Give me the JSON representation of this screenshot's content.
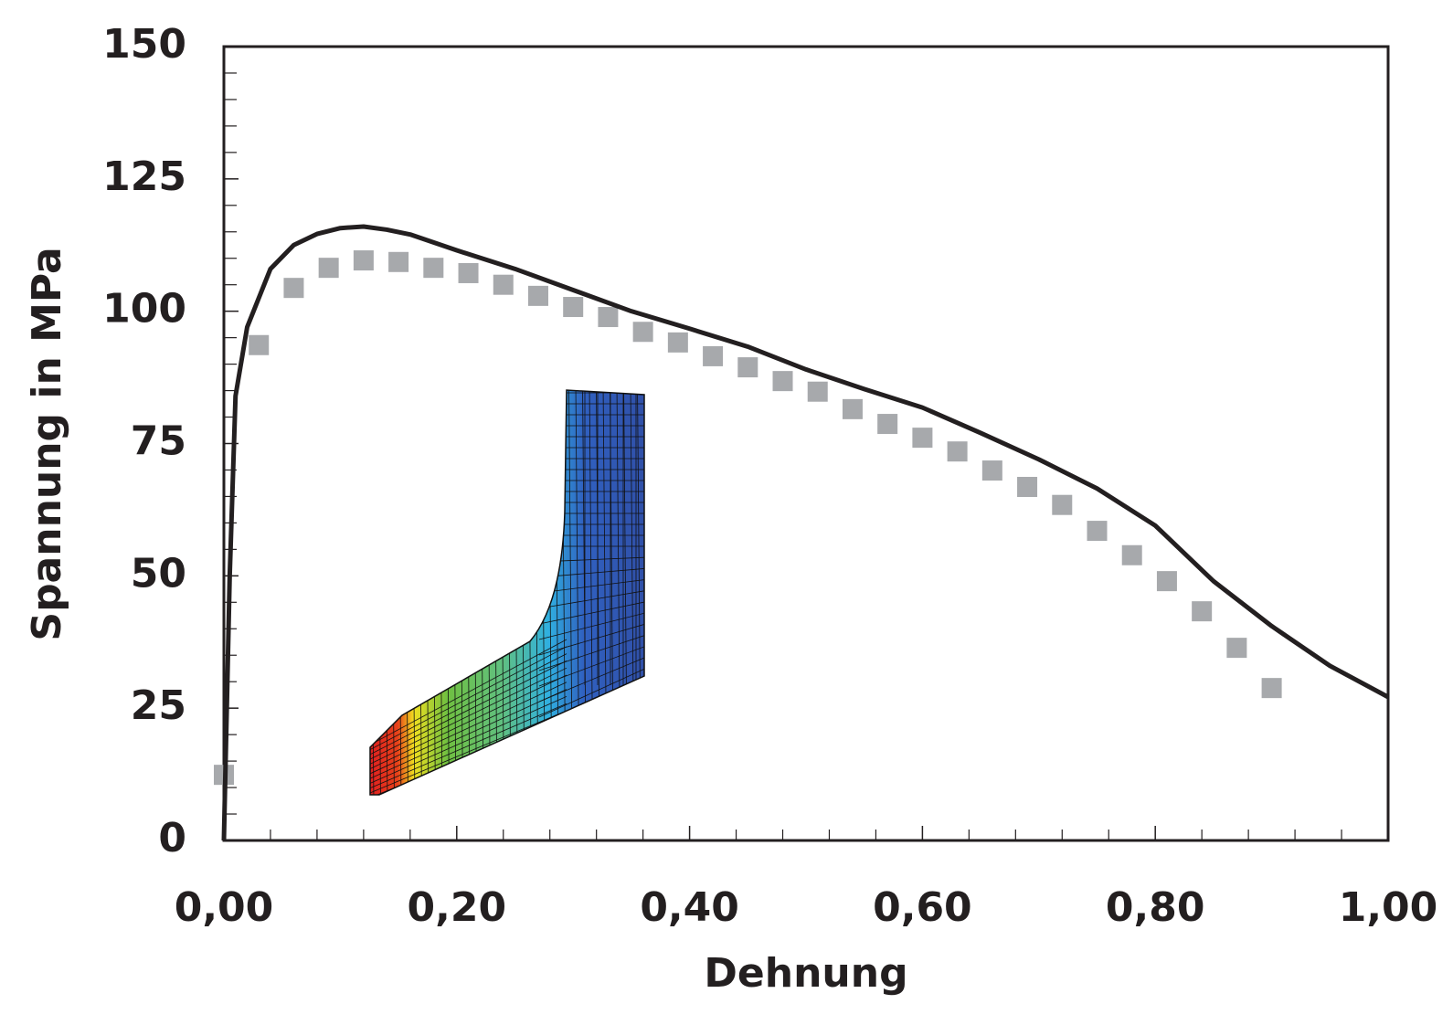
{
  "chart_data": {
    "type": "line",
    "xlabel": "Dehnung",
    "ylabel": "Spannung in MPa",
    "xlim": [
      0,
      1
    ],
    "ylim": [
      0,
      150
    ],
    "xticks": [
      {
        "value": 0,
        "label": "0,00"
      },
      {
        "value": 0.2,
        "label": "0,20"
      },
      {
        "value": 0.4,
        "label": "0,40"
      },
      {
        "value": 0.6,
        "label": "0,60"
      },
      {
        "value": 0.8,
        "label": "0,80"
      },
      {
        "value": 1,
        "label": "1,00"
      }
    ],
    "xminorticks": [
      0.04,
      0.08,
      0.12,
      0.16,
      0.24,
      0.28,
      0.32,
      0.36,
      0.44,
      0.48,
      0.52,
      0.56,
      0.64,
      0.68,
      0.72,
      0.76,
      0.84,
      0.88,
      0.92,
      0.96
    ],
    "yticks": [
      0,
      25,
      50,
      75,
      100,
      125,
      150
    ],
    "yminorticks": [
      5,
      10,
      15,
      20,
      30,
      35,
      40,
      45,
      55,
      60,
      65,
      70,
      80,
      85,
      90,
      95,
      105,
      110,
      115,
      120,
      130,
      135,
      140,
      145
    ],
    "series": [
      {
        "type": "line",
        "color": "#231f20",
        "x": [
          0,
          0.005,
          0.01,
          0.02,
          0.04,
          0.06,
          0.08,
          0.1,
          0.12,
          0.14,
          0.16,
          0.2,
          0.25,
          0.3,
          0.35,
          0.4,
          0.45,
          0.5,
          0.55,
          0.6,
          0.65,
          0.7,
          0.75,
          0.8,
          0.85,
          0.9,
          0.95,
          1
        ],
        "values": [
          0,
          50,
          84,
          97,
          108,
          112.5,
          114.6,
          115.7,
          116,
          115.4,
          114.5,
          111.5,
          108,
          104,
          100,
          96.7,
          93.3,
          89,
          85.3,
          81.8,
          77,
          72,
          66.5,
          59.5,
          49,
          40.5,
          33,
          27.1
        ]
      },
      {
        "type": "scatter",
        "color": "#a7a9ac",
        "x": [
          0,
          0.03,
          0.06,
          0.09,
          0.12,
          0.15,
          0.18,
          0.21,
          0.24,
          0.27,
          0.3,
          0.33,
          0.36,
          0.39,
          0.42,
          0.45,
          0.48,
          0.51,
          0.54,
          0.57,
          0.6,
          0.63,
          0.66,
          0.69,
          0.72,
          0.75,
          0.78,
          0.81,
          0.84,
          0.87,
          0.9
        ],
        "values": [
          12.4,
          93.6,
          104.4,
          108.2,
          109.6,
          109.3,
          108.2,
          107.2,
          105,
          102.9,
          100.8,
          98.9,
          96.1,
          94.1,
          91.5,
          89.4,
          86.8,
          84.8,
          81.5,
          78.7,
          76.1,
          73.5,
          69.9,
          66.8,
          63.4,
          58.5,
          53.9,
          49,
          43.3,
          36.4,
          28.8
        ]
      }
    ]
  }
}
